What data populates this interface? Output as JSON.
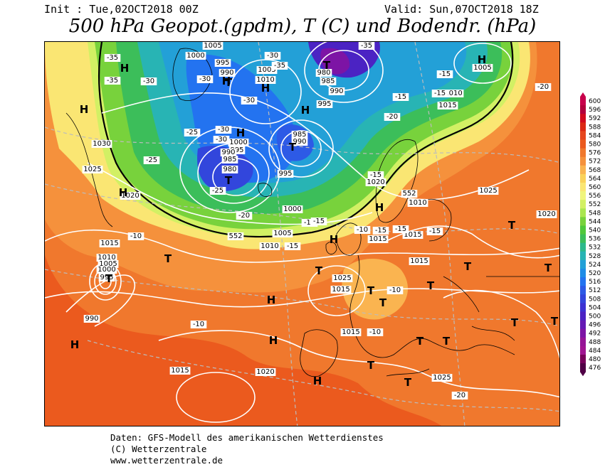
{
  "header": {
    "init": "Init : Tue,02OCT2018 00Z",
    "valid": "Valid: Sun,07OCT2018 18Z",
    "title": "500 hPa Geopot.(gpdm), T (C) und Bodendr. (hPa)"
  },
  "legend": {
    "levels": [
      "600",
      "596",
      "592",
      "588",
      "584",
      "580",
      "576",
      "572",
      "568",
      "564",
      "560",
      "556",
      "552",
      "548",
      "544",
      "540",
      "536",
      "532",
      "528",
      "524",
      "520",
      "516",
      "512",
      "508",
      "504",
      "500",
      "496",
      "492",
      "488",
      "484",
      "480",
      "476"
    ],
    "colors": [
      "#c8004b",
      "#b2003c",
      "#d20a1e",
      "#dc2814",
      "#e6461e",
      "#eb5a1e",
      "#f0782d",
      "#f5913c",
      "#fab450",
      "#fad25a",
      "#fae673",
      "#f0f57d",
      "#d2f064",
      "#aae650",
      "#78d23c",
      "#50c83c",
      "#3cbe5a",
      "#2db98c",
      "#28b4b4",
      "#23a0d7",
      "#1e8ce6",
      "#2373f0",
      "#2d5ae6",
      "#3246dc",
      "#3c32d2",
      "#4b23c3",
      "#6419b4",
      "#7d14a5",
      "#961496",
      "#a01491",
      "#78005a",
      "#500046"
    ]
  },
  "pressure_labels": [
    "1005",
    "1000",
    "995",
    "990",
    "1005",
    "1010",
    "980",
    "985",
    "990",
    "995",
    "1010",
    "1015",
    "1005",
    "1030",
    "1025",
    "1020",
    "1000",
    "995",
    "990",
    "985",
    "980",
    "985",
    "990",
    "995",
    "1000",
    "1005",
    "1010",
    "1020",
    "1010",
    "1015",
    "1025",
    "1015",
    "1010",
    "1005",
    "1000",
    "995",
    "990",
    "1015",
    "1025",
    "1015",
    "1015",
    "1015",
    "1020",
    "1015",
    "1025",
    "1020"
  ],
  "temperature_labels": [
    "-35",
    "-35",
    "-30",
    "-35",
    "-35",
    "-30",
    "-30",
    "-25",
    "-30",
    "-30",
    "-30",
    "-20",
    "-25",
    "-25",
    "-20",
    "-15",
    "-15",
    "-10",
    "-20",
    "-15",
    "-15",
    "-15",
    "-15",
    "-15",
    "-15",
    "-15",
    "-15",
    "-10",
    "-10",
    "-10",
    "-10",
    "-20"
  ],
  "height_labels": [
    "552",
    "552"
  ],
  "pressure_centers": [
    {
      "type": "H"
    },
    {
      "type": "H"
    },
    {
      "type": "H"
    },
    {
      "type": "H"
    },
    {
      "type": "H"
    },
    {
      "type": "H"
    },
    {
      "type": "H"
    },
    {
      "type": "H"
    },
    {
      "type": "H"
    },
    {
      "type": "H"
    },
    {
      "type": "H"
    },
    {
      "type": "H"
    },
    {
      "type": "H"
    },
    {
      "type": "H"
    },
    {
      "type": "T"
    },
    {
      "type": "T"
    },
    {
      "type": "T"
    },
    {
      "type": "T"
    },
    {
      "type": "T"
    },
    {
      "type": "T"
    },
    {
      "type": "T"
    },
    {
      "type": "T"
    },
    {
      "type": "T"
    },
    {
      "type": "T"
    },
    {
      "type": "T"
    },
    {
      "type": "T"
    },
    {
      "type": "T"
    },
    {
      "type": "T"
    },
    {
      "type": "T"
    },
    {
      "type": "T"
    },
    {
      "type": "T"
    },
    {
      "type": "T"
    },
    {
      "type": "T"
    }
  ],
  "footer": {
    "line1": "Daten: GFS-Modell des amerikanischen Wetterdienstes",
    "line2": "(C) Wetterzentrale",
    "line3": "www.wetterzentrale.de"
  }
}
